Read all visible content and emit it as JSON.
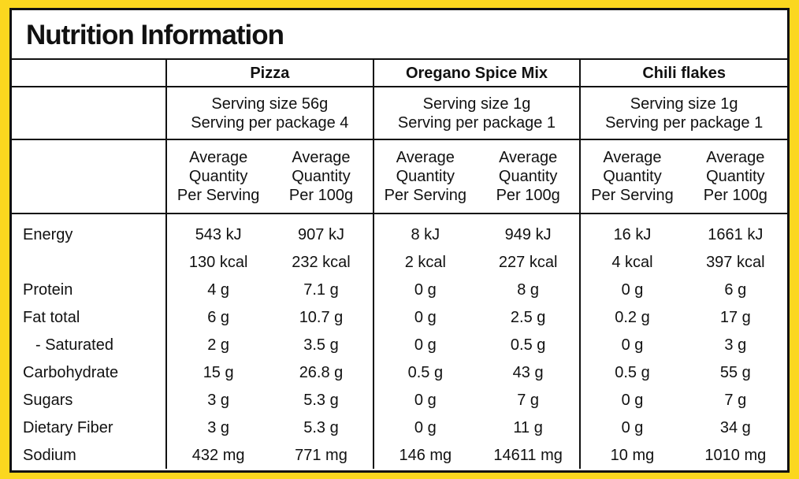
{
  "title": "Nutrition Information",
  "products": [
    {
      "name": "Pizza",
      "serving": [
        "Serving size 56g",
        "Serving per package 4"
      ],
      "columns": [
        [
          "Average",
          "Quantity",
          "Per Serving"
        ],
        [
          "Average",
          "Quantity",
          "Per 100g"
        ]
      ]
    },
    {
      "name": "Oregano Spice Mix",
      "serving": [
        "Serving size 1g",
        "Serving per package 1"
      ],
      "columns": [
        [
          "Average",
          "Quantity",
          "Per Serving"
        ],
        [
          "Average",
          "Quantity",
          "Per 100g"
        ]
      ]
    },
    {
      "name": "Chili flakes",
      "serving": [
        "Serving size 1g",
        "Serving per package 1"
      ],
      "columns": [
        [
          "Average",
          "Quantity",
          "Per Serving"
        ],
        [
          "Average",
          "Quantity",
          "Per 100g"
        ]
      ]
    }
  ],
  "rows": [
    {
      "label": "Energy",
      "values": [
        "543 kJ",
        "907 kJ",
        "8 kJ",
        "949 kJ",
        "16 kJ",
        "1661 kJ"
      ]
    },
    {
      "values": [
        "130 kcal",
        "232 kcal",
        "2 kcal",
        "227 kcal",
        "4 kcal",
        "397 kcal"
      ]
    },
    {
      "label": "Protein",
      "values": [
        "4 g",
        "7.1 g",
        "0 g",
        "8 g",
        "0 g",
        "6 g"
      ]
    },
    {
      "label": "Fat total",
      "values": [
        "6 g",
        "10.7 g",
        "0 g",
        "2.5 g",
        "0.2 g",
        "17 g"
      ]
    },
    {
      "label": "- Saturated",
      "values": [
        "2 g",
        "3.5 g",
        "0 g",
        "0.5 g",
        "0 g",
        "3 g"
      ]
    },
    {
      "label": "Carbohydrate",
      "values": [
        "15 g",
        "26.8 g",
        "0.5 g",
        "43 g",
        "0.5 g",
        "55 g"
      ]
    },
    {
      "label": "Sugars",
      "values": [
        "3 g",
        "5.3 g",
        "0 g",
        "7 g",
        "0 g",
        "7 g"
      ]
    },
    {
      "label": "Dietary Fiber",
      "values": [
        "3 g",
        "5.3 g",
        "0 g",
        "11 g",
        "0 g",
        "34 g"
      ]
    },
    {
      "label": "Sodium",
      "values": [
        "432 mg",
        "771 mg",
        "146 mg",
        "14611 mg",
        "10 mg",
        "1010 mg"
      ]
    }
  ]
}
